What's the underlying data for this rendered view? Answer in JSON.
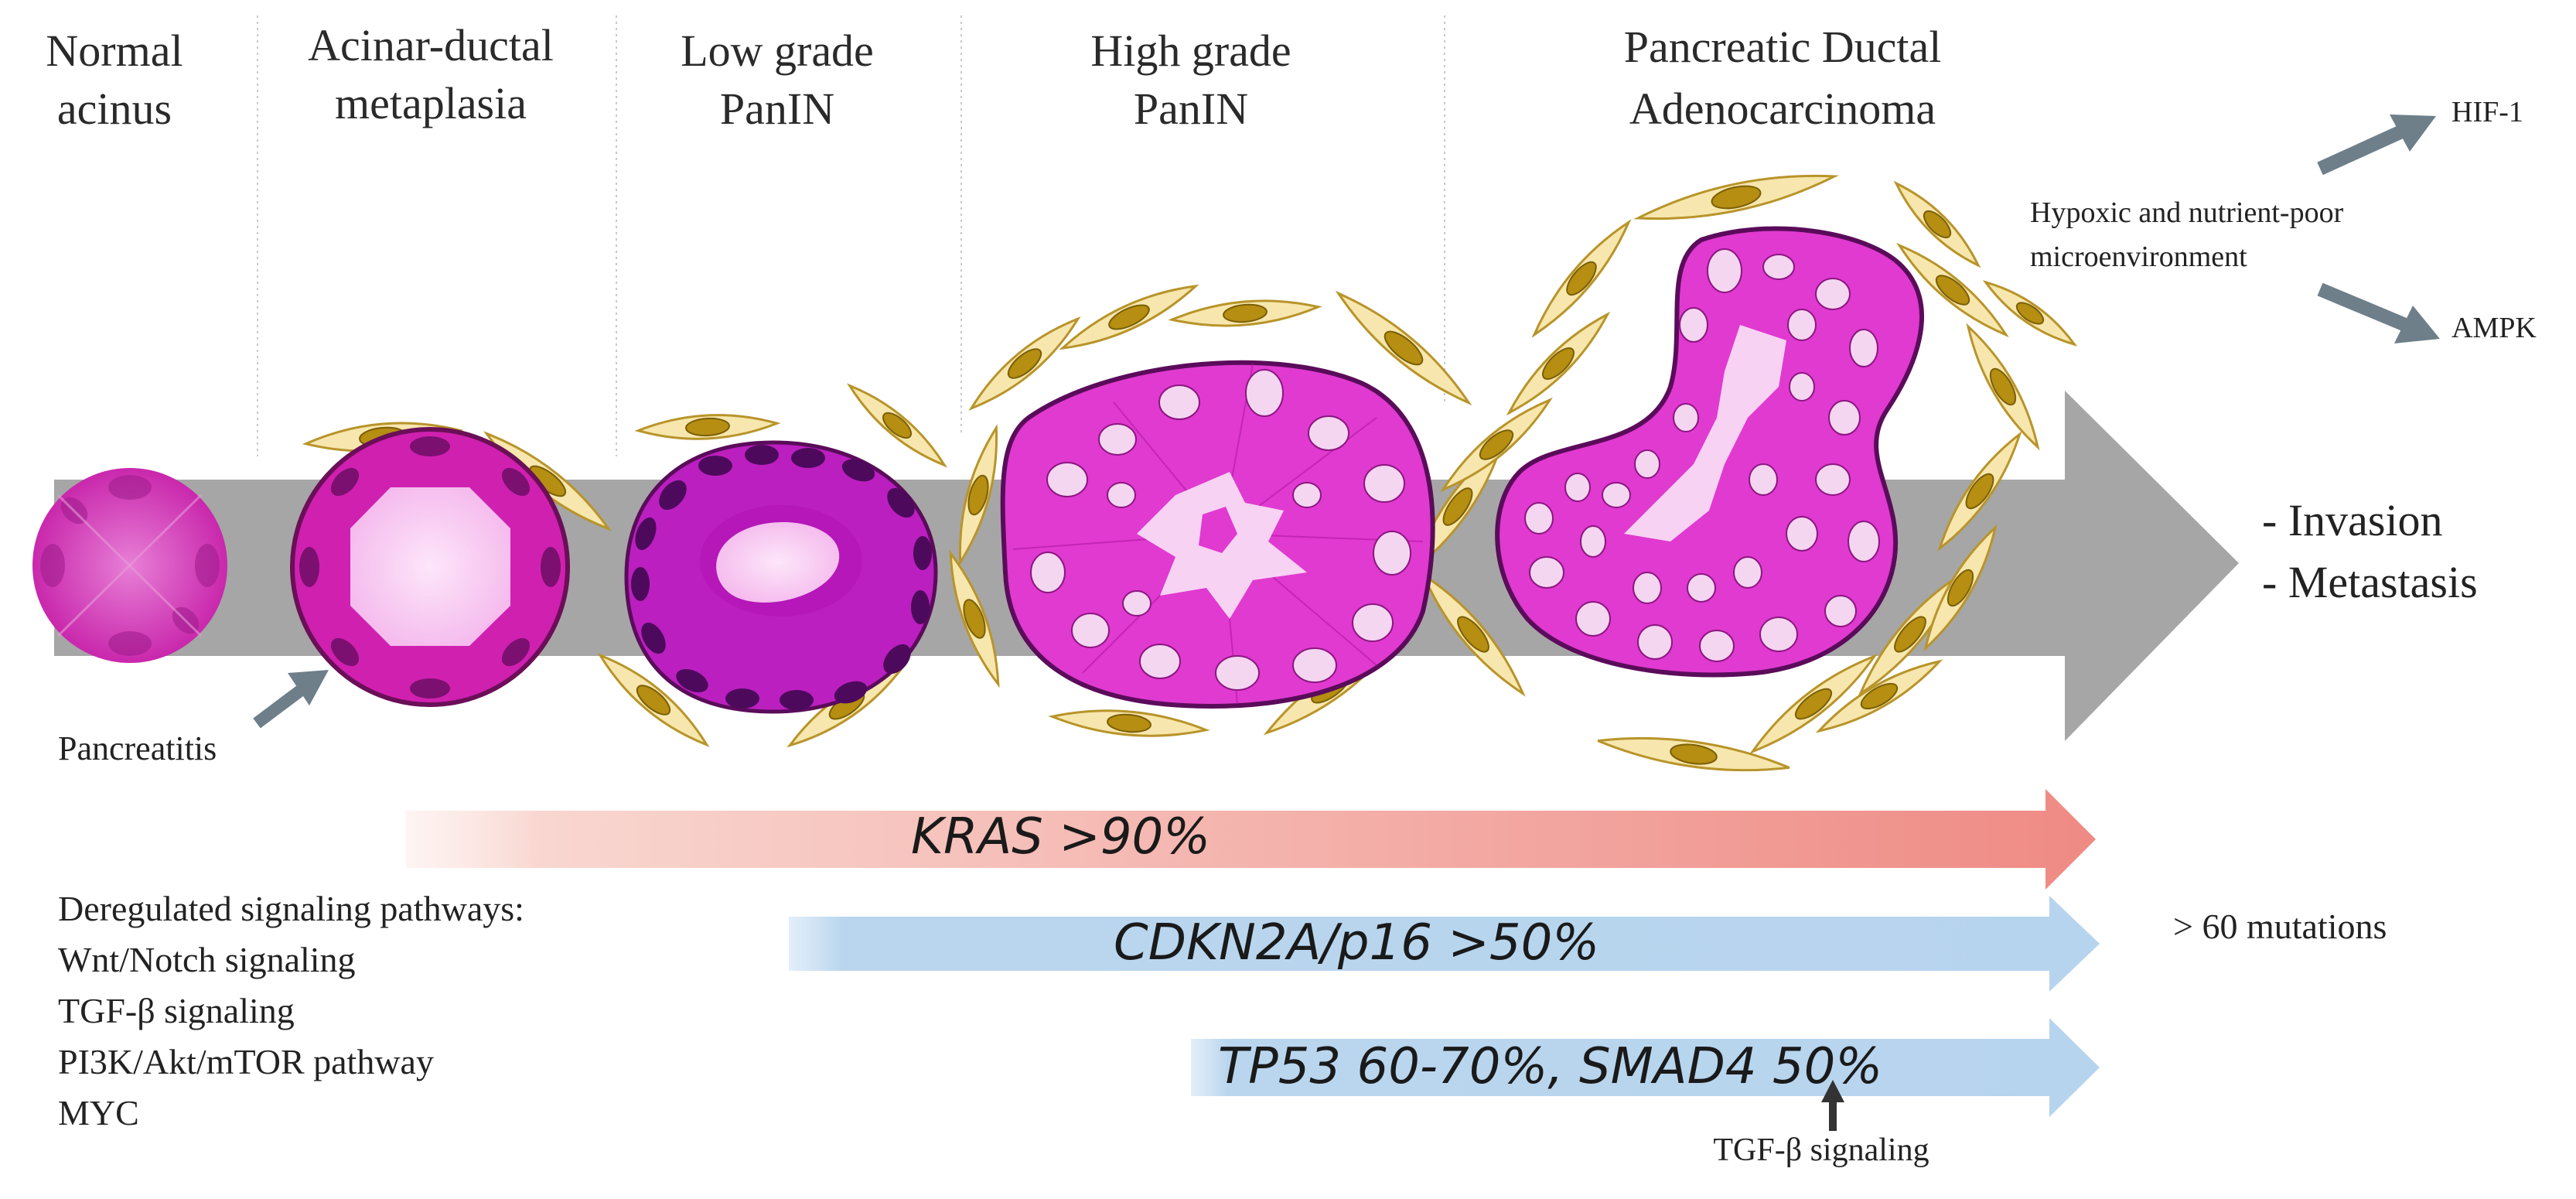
{
  "stages": [
    {
      "line1": "Normal",
      "line2": "acinus"
    },
    {
      "line1": "Acinar-ductal",
      "line2": "metaplasia"
    },
    {
      "line1": "Low grade",
      "line2": "PanIN"
    },
    {
      "line1": "High grade",
      "line2": "PanIN"
    },
    {
      "line1": "Pancreatic  Ductal",
      "line2": "Adenocarcinoma"
    }
  ],
  "pancreatitis_label": "Pancreatitis",
  "outcomes": [
    "- Invasion",
    "- Metastasis"
  ],
  "microenvironment": {
    "line1": "Hypoxic and nutrient-poor",
    "line2": "microenvironment",
    "targets": [
      "HIF-1",
      "AMPK"
    ]
  },
  "mutation_bars": [
    {
      "label": "KRAS  >90%"
    },
    {
      "label": "CDKN2A/p16   >50%"
    },
    {
      "label": "TP53 60-70%,  SMAD4 50%"
    }
  ],
  "mutations_note": "> 60 mutations",
  "tgf_note": "TGF-β signaling",
  "pathways": {
    "title": "Deregulated signaling pathways:",
    "items": [
      "Wnt/Notch signaling",
      "TGF-β signaling",
      "PI3K/Akt/mTOR pathway",
      "MYC"
    ]
  },
  "colors": {
    "progression_arrow": "#a6a6a6",
    "kras_bar": "#ef8f88",
    "tumor_bars": "#b9d5ee",
    "tissue_magenta": "#d21fb4",
    "lumen_pink": "#f7c0f0",
    "fibroblast": "#f7e7ae",
    "nucleus": "#b58e12",
    "pointer_arrows": "#6e7f8a"
  }
}
